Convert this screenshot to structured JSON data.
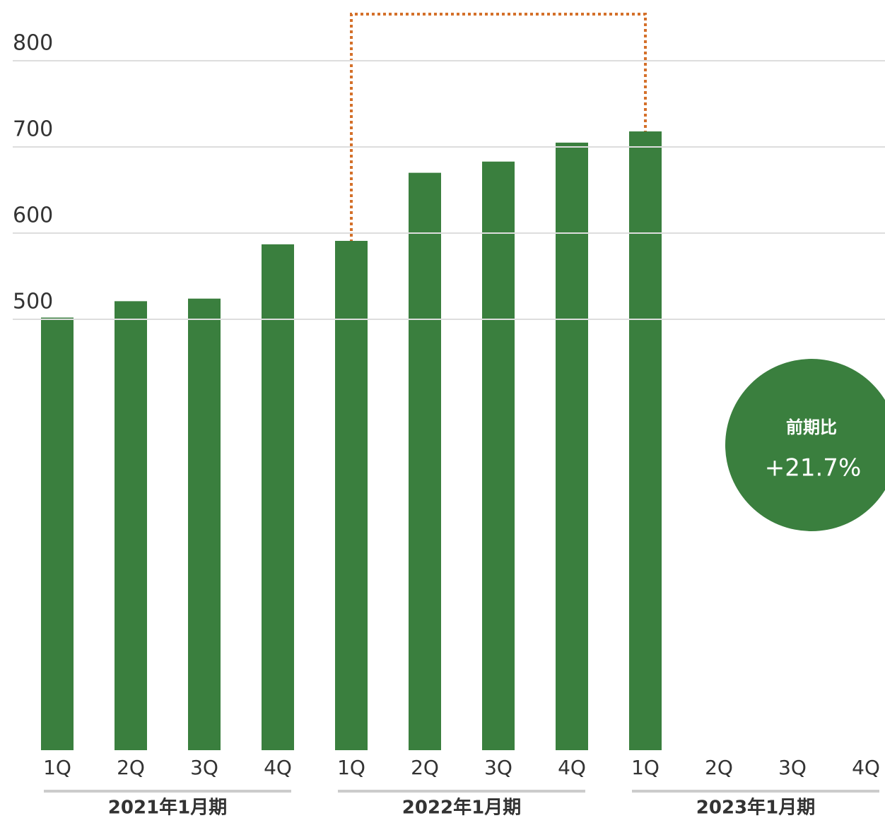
{
  "chart_data": {
    "type": "bar",
    "categories": [
      "1Q",
      "2Q",
      "3Q",
      "4Q",
      "1Q",
      "2Q",
      "3Q",
      "4Q",
      "1Q",
      "2Q",
      "3Q",
      "4Q"
    ],
    "values": [
      502,
      521,
      524,
      587,
      591,
      670,
      683,
      705,
      718,
      null,
      null,
      null
    ],
    "color": "#3a7f3e",
    "groups": [
      "2021年1月期",
      "2022年1月期",
      "2023年1月期"
    ],
    "ylim": [
      0,
      800
    ],
    "yticks": [
      500,
      600,
      700,
      800
    ],
    "grid": true,
    "annotation": {
      "title": "前期比",
      "value": "+21.7%"
    }
  }
}
